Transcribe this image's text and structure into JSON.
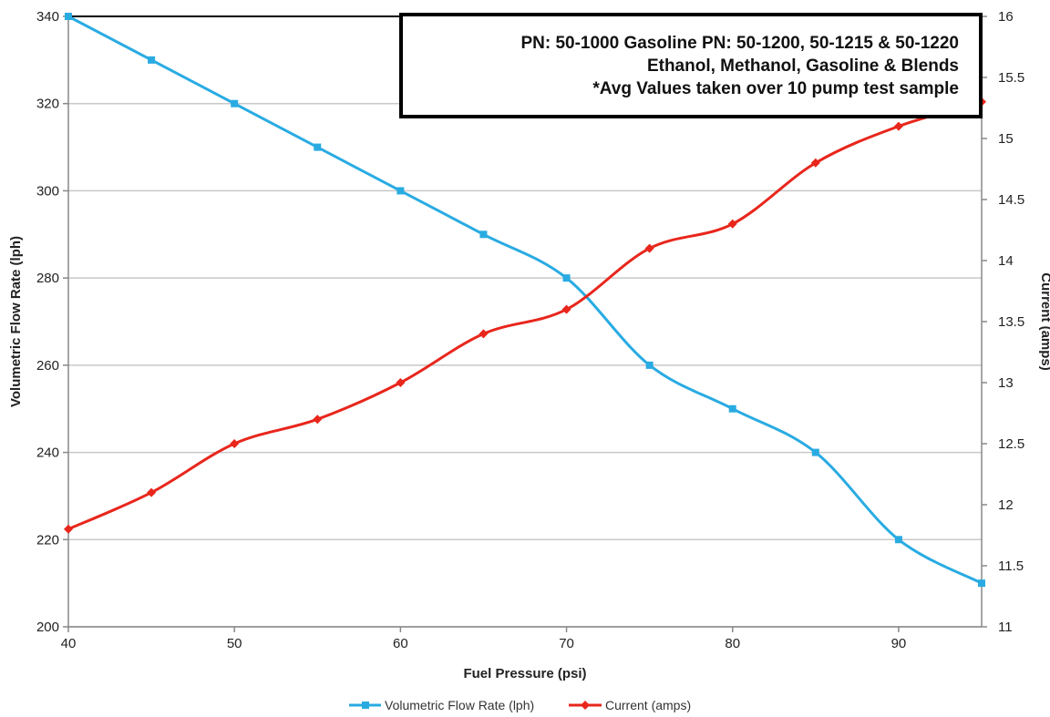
{
  "chart_data": {
    "type": "line",
    "xlabel": "Fuel Pressure (psi)",
    "ylabel_left": "Volumetric Flow Rate (lph)",
    "ylabel_right": "Current (amps)",
    "x": [
      40,
      45,
      50,
      55,
      60,
      65,
      70,
      75,
      80,
      85,
      90,
      95
    ],
    "xlim": [
      40,
      95
    ],
    "x_ticks": [
      "40",
      "50",
      "60",
      "70",
      "80",
      "90"
    ],
    "ylim_left": [
      200,
      340
    ],
    "y_left_ticks": [
      "200",
      "220",
      "240",
      "260",
      "280",
      "300",
      "320",
      "340"
    ],
    "ylim_right": [
      11,
      16
    ],
    "y_right_ticks": [
      "11",
      "11.5",
      "12",
      "12.5",
      "13",
      "13.5",
      "14",
      "14.5",
      "15",
      "15.5",
      "16"
    ],
    "grid": true,
    "legend_position": "bottom",
    "series": [
      {
        "name": "Volumetric Flow Rate (lph)",
        "axis": "left",
        "color": "#29abe2",
        "marker": "square",
        "values": [
          340,
          330,
          320,
          310,
          300,
          290,
          280,
          260,
          250,
          240,
          220,
          210
        ]
      },
      {
        "name": "Current (amps)",
        "axis": "right",
        "color": "#e8261c",
        "marker": "diamond",
        "values": [
          11.8,
          12.1,
          12.5,
          12.7,
          13.0,
          13.4,
          13.6,
          14.1,
          14.3,
          14.8,
          15.1,
          15.3
        ]
      }
    ],
    "annotation": {
      "lines": [
        "PN: 50-1000 Gasoline  PN: 50-1200, 50-1215 & 50-1220",
        "Ethanol, Methanol, Gasoline & Blends",
        "*Avg Values taken over 10 pump test sample"
      ]
    }
  }
}
